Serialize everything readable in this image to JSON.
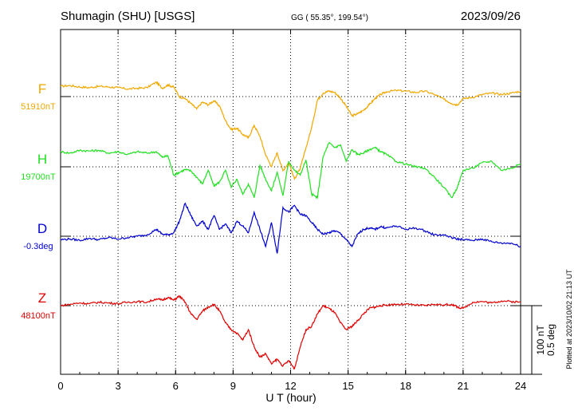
{
  "header": {
    "station": "Shumagin (SHU)  [USGS]",
    "coords": "GG ( 55.35°, 199.54°)",
    "date": "2023/09/26"
  },
  "footer": {
    "plotted_note": "Plotted at 2023/10/02 21:13 UT"
  },
  "scale": {
    "line1": "100 nT",
    "line2": "0.5 deg"
  },
  "chart_data": {
    "type": "line",
    "title": "Shumagin (SHU)  [USGS]",
    "xlabel": "U T (hour)",
    "ylabel": "",
    "xlim": [
      0,
      24
    ],
    "xticks": [
      0,
      3,
      6,
      9,
      12,
      15,
      18,
      21,
      24
    ],
    "grid": true,
    "scale_bar": {
      "nT": 100,
      "deg": 0.5
    },
    "series": [
      {
        "name": "F",
        "baseline_label": "51910nT",
        "color": "#f0a800",
        "x": [
          0,
          0.5,
          1,
          1.5,
          2,
          2.5,
          3,
          3.5,
          4,
          4.5,
          5,
          5.3,
          5.6,
          5.9,
          6.2,
          6.5,
          6.8,
          7.1,
          7.4,
          7.7,
          8,
          8.3,
          8.6,
          8.9,
          9.2,
          9.5,
          9.8,
          10.1,
          10.4,
          10.7,
          11,
          11.3,
          11.6,
          11.9,
          12.2,
          12.5,
          12.8,
          13.1,
          13.4,
          13.7,
          14,
          14.3,
          14.6,
          14.9,
          15.2,
          15.5,
          15.8,
          16.1,
          16.4,
          16.7,
          17,
          17.5,
          18,
          18.5,
          19,
          19.5,
          20,
          20.4,
          20.7,
          21,
          21.5,
          22,
          22.5,
          23,
          23.5,
          24
        ],
        "y": [
          15,
          16,
          14,
          13,
          15,
          14,
          13,
          11,
          12,
          13,
          21,
          12,
          17,
          14,
          0,
          -3,
          -10,
          -18,
          -8,
          -12,
          -6,
          -14,
          -35,
          -48,
          -46,
          -55,
          -60,
          -42,
          -58,
          -85,
          -102,
          -82,
          -108,
          -96,
          -120,
          -105,
          -75,
          -45,
          -5,
          5,
          8,
          6,
          -2,
          -14,
          -28,
          -25,
          -20,
          -12,
          -3,
          3,
          7,
          9,
          8,
          6,
          8,
          3,
          -4,
          -10,
          -12,
          -3,
          -1,
          3,
          5,
          3,
          5,
          8
        ]
      },
      {
        "name": "H",
        "baseline_label": "19700nT",
        "color": "#22e022",
        "x": [
          0,
          0.5,
          1,
          1.5,
          2,
          2.5,
          3,
          3.5,
          4,
          4.5,
          5,
          5.3,
          5.6,
          5.9,
          6.2,
          6.5,
          6.8,
          7.1,
          7.4,
          7.7,
          8,
          8.3,
          8.6,
          8.9,
          9.2,
          9.5,
          9.8,
          10.1,
          10.4,
          10.7,
          11,
          11.3,
          11.6,
          11.9,
          12.2,
          12.5,
          12.8,
          13.1,
          13.4,
          13.7,
          14,
          14.3,
          14.6,
          14.9,
          15.2,
          15.5,
          15.8,
          16.1,
          16.4,
          16.7,
          17,
          17.5,
          18,
          18.5,
          19,
          19.5,
          20,
          20.4,
          20.7,
          21,
          21.5,
          22,
          22.5,
          23,
          23.5,
          24
        ],
        "y": [
          22,
          20,
          24,
          23,
          24,
          20,
          22,
          18,
          22,
          20,
          22,
          14,
          16,
          -12,
          -8,
          -4,
          -6,
          -15,
          -25,
          -5,
          -28,
          -22,
          -5,
          -30,
          -18,
          -40,
          -25,
          -45,
          2,
          -18,
          -35,
          -8,
          -42,
          8,
          -5,
          -12,
          10,
          -40,
          -45,
          15,
          35,
          28,
          32,
          8,
          25,
          18,
          20,
          25,
          28,
          22,
          18,
          8,
          4,
          0,
          -2,
          -15,
          -30,
          -45,
          -30,
          -5,
          -2,
          6,
          8,
          -5,
          -2,
          4
        ]
      },
      {
        "name": "D",
        "baseline_label": "-0.3deg",
        "color": "#0000d0",
        "x": [
          0,
          0.5,
          1,
          1.5,
          2,
          2.5,
          3,
          3.5,
          4,
          4.5,
          5,
          5.3,
          5.6,
          5.9,
          6.2,
          6.5,
          6.8,
          7.1,
          7.4,
          7.7,
          8,
          8.3,
          8.6,
          8.9,
          9.2,
          9.5,
          9.8,
          10.1,
          10.4,
          10.7,
          11,
          11.3,
          11.6,
          11.9,
          12.2,
          12.5,
          12.8,
          13.1,
          13.4,
          13.7,
          14,
          14.3,
          14.6,
          14.9,
          15.2,
          15.5,
          15.8,
          16.1,
          16.4,
          16.7,
          17,
          17.5,
          18,
          18.5,
          19,
          19.5,
          20,
          20.4,
          20.7,
          21,
          21.5,
          22,
          22.5,
          23,
          23.5,
          24
        ],
        "y": [
          -5,
          -4,
          -6,
          -3,
          -5,
          -2,
          -4,
          -2,
          0,
          2,
          10,
          3,
          2,
          5,
          22,
          48,
          30,
          15,
          22,
          10,
          30,
          10,
          18,
          5,
          22,
          15,
          5,
          35,
          10,
          -15,
          20,
          -25,
          42,
          35,
          45,
          32,
          30,
          20,
          10,
          3,
          5,
          8,
          4,
          -5,
          -15,
          3,
          10,
          12,
          10,
          14,
          12,
          15,
          10,
          12,
          8,
          2,
          2,
          -2,
          -4,
          -5,
          -6,
          -4,
          -8,
          -10,
          -10,
          -15
        ]
      },
      {
        "name": "Z",
        "baseline_label": "48100nT",
        "color": "#e00000",
        "x": [
          0,
          0.5,
          1,
          1.5,
          2,
          2.5,
          3,
          3.5,
          4,
          4.5,
          5,
          5.3,
          5.6,
          5.9,
          6.2,
          6.5,
          6.8,
          7.1,
          7.4,
          7.7,
          8,
          8.3,
          8.6,
          8.9,
          9.2,
          9.5,
          9.8,
          10.1,
          10.4,
          10.7,
          11,
          11.3,
          11.6,
          11.9,
          12.2,
          12.5,
          12.8,
          13.1,
          13.4,
          13.7,
          14,
          14.3,
          14.6,
          14.9,
          15.2,
          15.5,
          15.8,
          16.1,
          16.4,
          16.7,
          17,
          17.5,
          18,
          18.5,
          19,
          19.5,
          20,
          20.4,
          20.7,
          21,
          21.5,
          22,
          22.5,
          23,
          23.5,
          24
        ],
        "y": [
          0,
          2,
          4,
          3,
          5,
          4,
          3,
          5,
          6,
          5,
          10,
          8,
          12,
          8,
          14,
          5,
          -12,
          -20,
          -8,
          -2,
          2,
          -8,
          -25,
          -35,
          -40,
          -50,
          -35,
          -60,
          -75,
          -70,
          -85,
          -78,
          -88,
          -80,
          -92,
          -60,
          -35,
          -30,
          -12,
          0,
          -4,
          -10,
          -25,
          -35,
          -30,
          -22,
          -12,
          -4,
          -2,
          0,
          1,
          2,
          2,
          1,
          0,
          2,
          1,
          2,
          -2,
          -4,
          5,
          6,
          4,
          7,
          6,
          5
        ]
      }
    ]
  }
}
